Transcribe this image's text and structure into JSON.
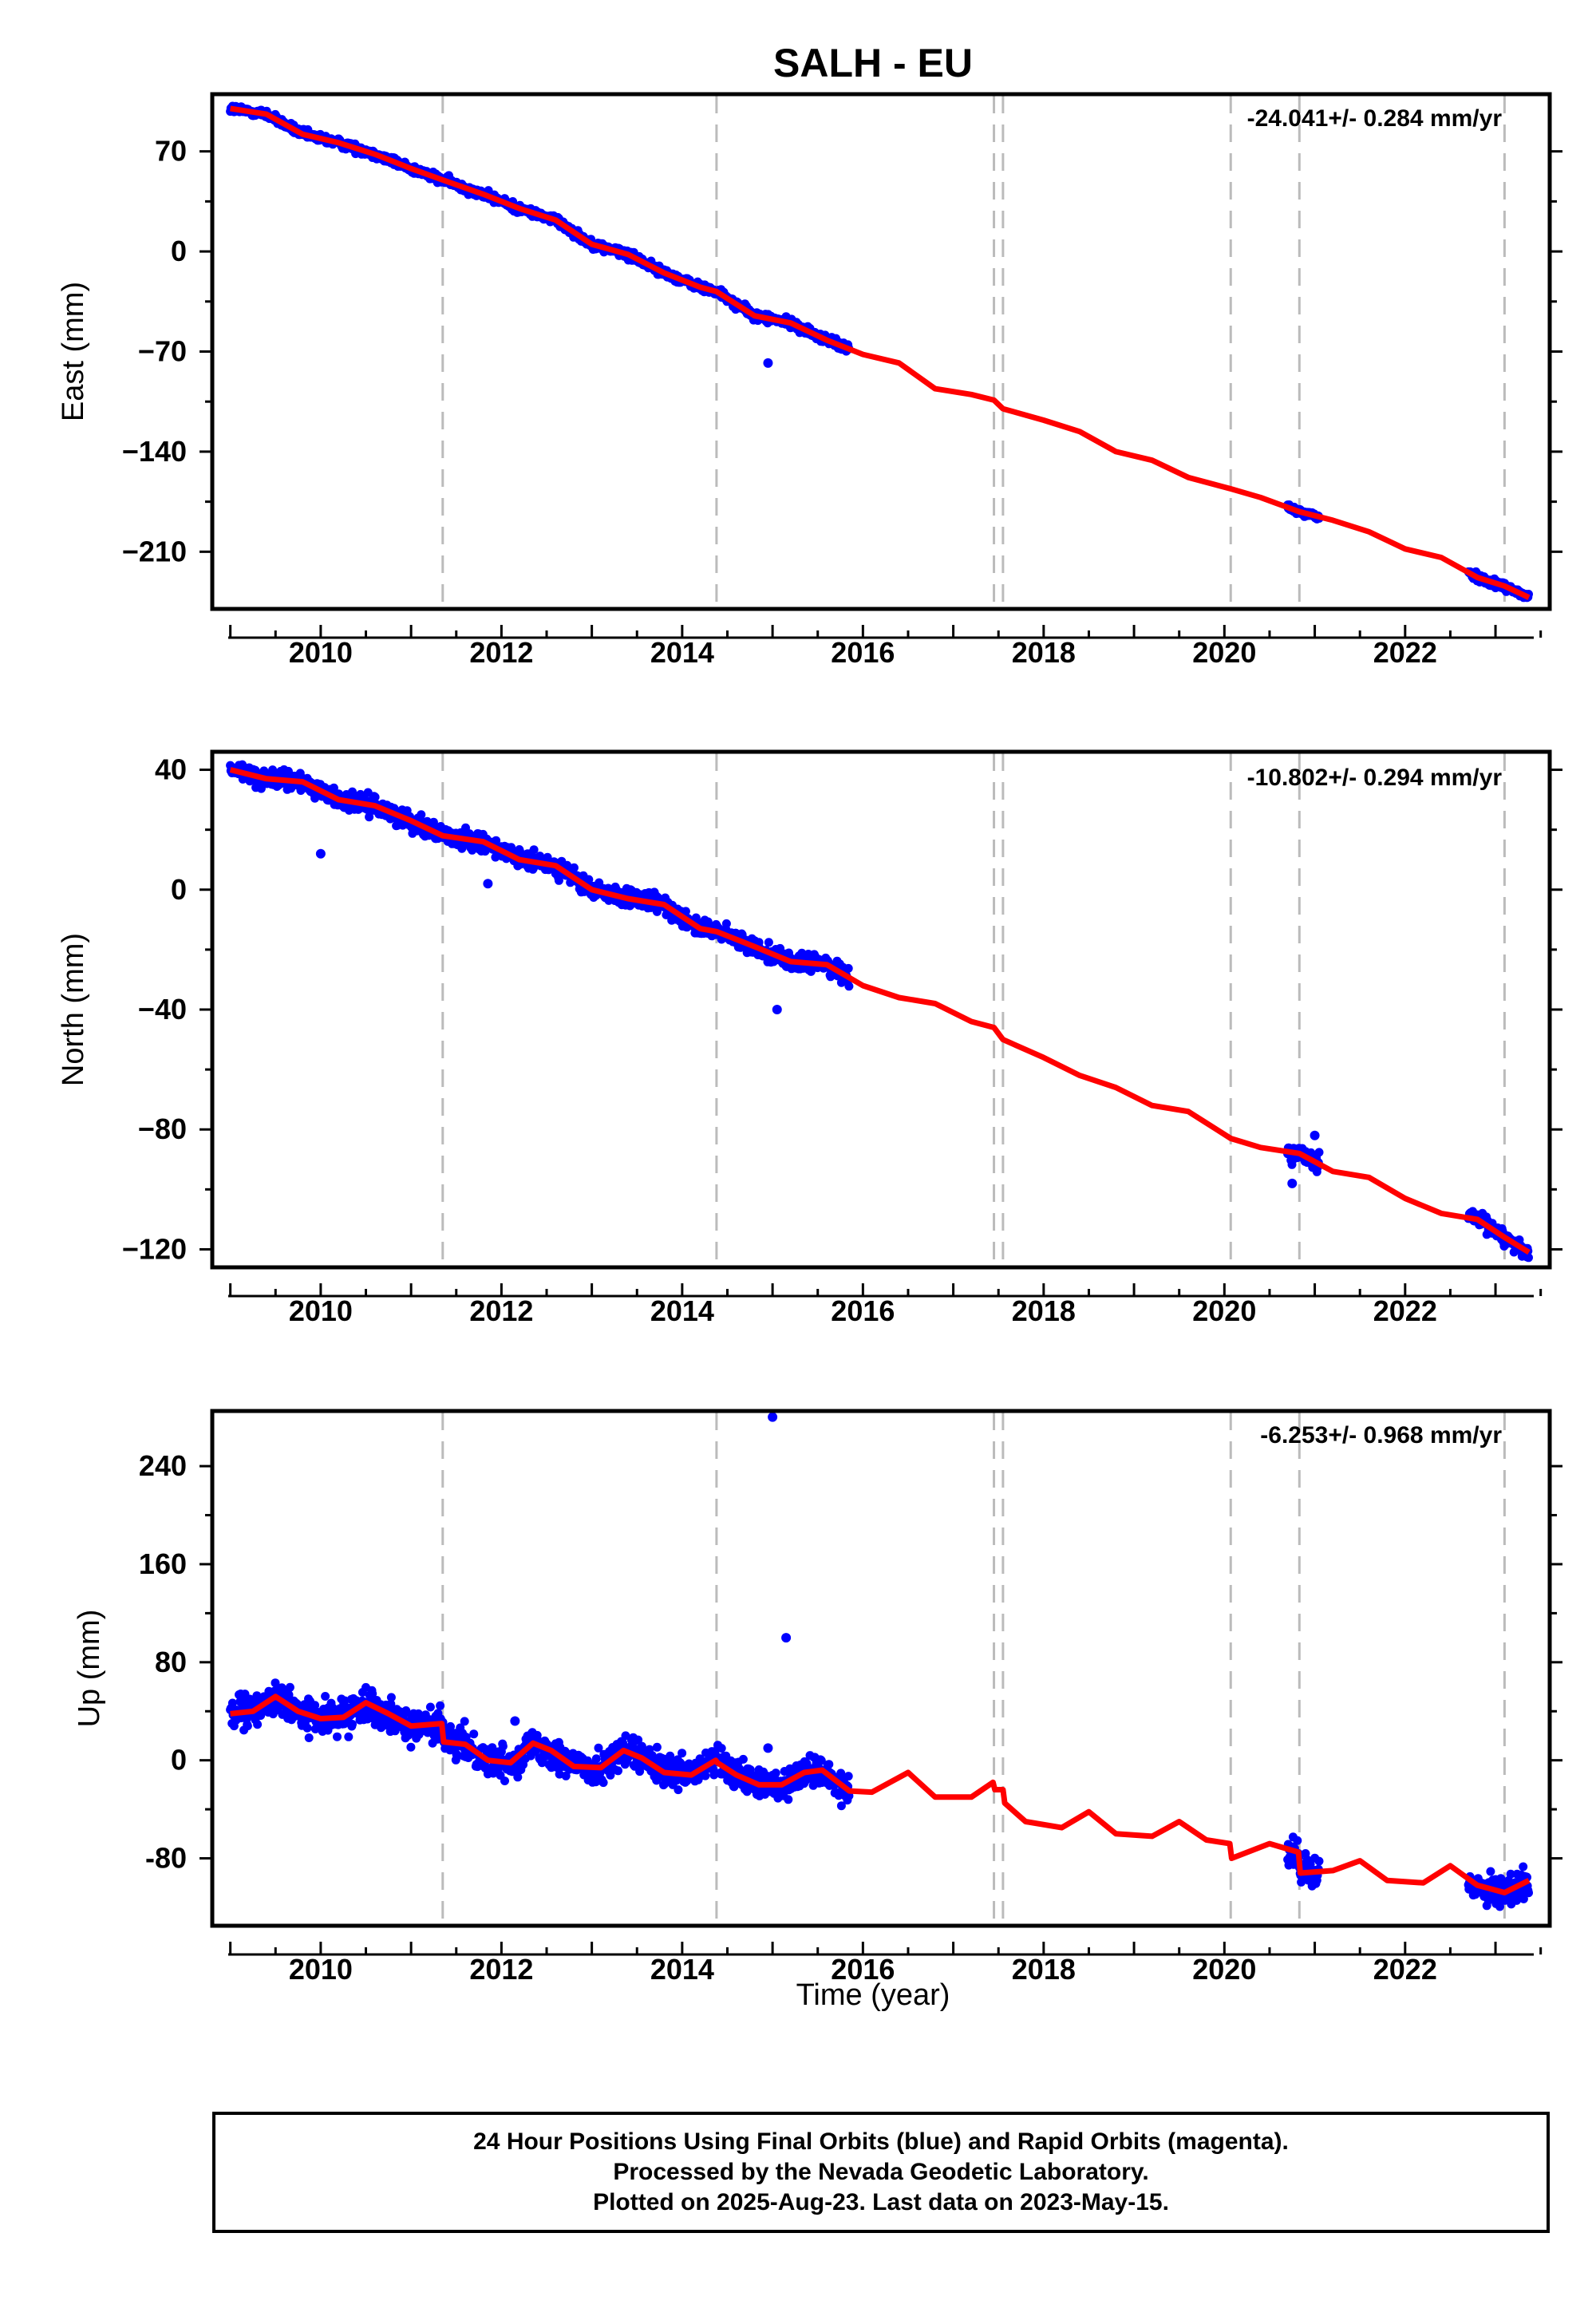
{
  "figure_title": "SALH - EU",
  "xlabel": "Time (year)",
  "notes": [
    "24 Hour Positions Using Final Orbits (blue) and Rapid Orbits (magenta).",
    "Processed by the Nevada Geodetic Laboratory.",
    "Plotted on 2025-Aug-23. Last data on 2023-May-15."
  ],
  "colors": {
    "data": "#0000ff",
    "model": "#ff0000",
    "steps": "#bbbbbb",
    "frame": "#000000"
  },
  "chart_data": [
    {
      "type": "scatter",
      "name": "east",
      "title": "SALH - EU",
      "xlabel": "",
      "ylabel": "East (mm)",
      "rate_label": "-24.041+/- 0.284 mm/yr",
      "xlim": [
        2008.8,
        2023.6
      ],
      "ylim": [
        -250,
        110
      ],
      "xticks": [
        2010,
        2012,
        2014,
        2016,
        2018,
        2020,
        2022
      ],
      "xtick_labels": [
        "2010",
        "2012",
        "2014",
        "2016",
        "2018",
        "2020",
        "2022"
      ],
      "yticks": [
        70,
        0,
        -70,
        -140,
        -210
      ],
      "ytick_labels": [
        "70",
        "0",
        "−70",
        "−140",
        "−210"
      ],
      "step_epochs": [
        2011.35,
        2014.38,
        2017.45,
        2017.55,
        2020.07,
        2020.83,
        2023.1
      ],
      "data_segments": [
        [
          2009.0,
          2015.85
        ],
        [
          2020.7,
          2021.05
        ],
        [
          2022.7,
          2023.37
        ]
      ],
      "model_x": [
        2009.0,
        2009.4,
        2009.8,
        2010.2,
        2010.6,
        2011.0,
        2011.35,
        2011.8,
        2012.2,
        2012.6,
        2013.0,
        2013.4,
        2013.8,
        2014.2,
        2014.38,
        2014.8,
        2015.2,
        2015.6,
        2016.0,
        2016.4,
        2016.8,
        2017.2,
        2017.45,
        2017.55,
        2018.0,
        2018.4,
        2018.8,
        2019.2,
        2019.6,
        2020.07,
        2020.4,
        2020.83,
        2021.2,
        2021.6,
        2022.0,
        2022.4,
        2022.8,
        2023.1,
        2023.37
      ],
      "model_y": [
        100,
        96,
        82,
        76,
        68,
        58,
        50,
        40,
        30,
        22,
        5,
        -2,
        -15,
        -25,
        -28,
        -45,
        -50,
        -62,
        -72,
        -78,
        -96,
        -100,
        -104,
        -110,
        -118,
        -126,
        -140,
        -146,
        -158,
        -166,
        -172,
        -182,
        -188,
        -196,
        -208,
        -214,
        -228,
        -234,
        -242
      ],
      "outliers": [
        {
          "x": 2014.95,
          "y": -78
        }
      ]
    },
    {
      "type": "scatter",
      "name": "north",
      "xlabel": "",
      "ylabel": "North (mm)",
      "rate_label": "-10.802+/- 0.294 mm/yr",
      "xlim": [
        2008.8,
        2023.6
      ],
      "ylim": [
        -126,
        46
      ],
      "xticks": [
        2010,
        2012,
        2014,
        2016,
        2018,
        2020,
        2022
      ],
      "xtick_labels": [
        "2010",
        "2012",
        "2014",
        "2016",
        "2018",
        "2020",
        "2022"
      ],
      "yticks": [
        40,
        0,
        -40,
        -80,
        -120
      ],
      "ytick_labels": [
        "40",
        "0",
        "−40",
        "−80",
        "−120"
      ],
      "step_epochs": [
        2011.35,
        2014.38,
        2017.45,
        2017.55,
        2020.07,
        2020.83,
        2023.1
      ],
      "data_segments": [
        [
          2009.0,
          2015.85
        ],
        [
          2020.7,
          2021.05
        ],
        [
          2022.7,
          2023.37
        ]
      ],
      "model_x": [
        2009.0,
        2009.4,
        2009.8,
        2010.2,
        2010.6,
        2011.0,
        2011.35,
        2011.8,
        2012.2,
        2012.6,
        2013.0,
        2013.4,
        2013.8,
        2014.2,
        2014.38,
        2014.8,
        2015.2,
        2015.6,
        2016.0,
        2016.4,
        2016.8,
        2017.2,
        2017.45,
        2017.55,
        2018.0,
        2018.4,
        2018.8,
        2019.2,
        2019.6,
        2020.07,
        2020.4,
        2020.83,
        2021.2,
        2021.6,
        2022.0,
        2022.4,
        2022.8,
        2023.1,
        2023.37
      ],
      "model_y": [
        40,
        37,
        36,
        30,
        28,
        23,
        18,
        16,
        10,
        8,
        0,
        -3,
        -5,
        -13,
        -14,
        -19,
        -24,
        -25,
        -32,
        -36,
        -38,
        -44,
        -46,
        -50,
        -56,
        -62,
        -66,
        -72,
        -74,
        -83,
        -86,
        -88,
        -94,
        -96,
        -103,
        -108,
        -110,
        -116,
        -121
      ],
      "outliers": [
        {
          "x": 2010.0,
          "y": 12
        },
        {
          "x": 2011.85,
          "y": 2
        },
        {
          "x": 2015.05,
          "y": -40
        },
        {
          "x": 2020.75,
          "y": -98
        },
        {
          "x": 2021.0,
          "y": -82
        }
      ]
    },
    {
      "type": "scatter",
      "name": "up",
      "xlabel": "Time (year)",
      "ylabel": "Up (mm)",
      "rate_label": "-6.253+/- 0.968 mm/yr",
      "xlim": [
        2008.8,
        2023.6
      ],
      "ylim": [
        -135,
        285
      ],
      "xticks": [
        2010,
        2012,
        2014,
        2016,
        2018,
        2020,
        2022
      ],
      "xtick_labels": [
        "2010",
        "2012",
        "2014",
        "2016",
        "2018",
        "2020",
        "2022"
      ],
      "yticks": [
        240,
        160,
        80,
        0,
        -80
      ],
      "ytick_labels": [
        "240",
        "160",
        "80",
        "0",
        "-80"
      ],
      "step_epochs": [
        2011.35,
        2014.38,
        2017.45,
        2017.55,
        2020.07,
        2020.83,
        2023.1
      ],
      "data_segments": [
        [
          2009.0,
          2015.85
        ],
        [
          2020.7,
          2021.05
        ],
        [
          2022.7,
          2023.37
        ]
      ],
      "model_x": [
        2009.0,
        2009.25,
        2009.5,
        2009.75,
        2010.0,
        2010.25,
        2010.5,
        2010.75,
        2011.0,
        2011.34,
        2011.36,
        2011.6,
        2011.85,
        2012.1,
        2012.35,
        2012.55,
        2012.8,
        2013.1,
        2013.35,
        2013.55,
        2013.8,
        2014.1,
        2014.37,
        2014.39,
        2014.6,
        2014.85,
        2015.1,
        2015.35,
        2015.55,
        2015.85,
        2016.1,
        2016.5,
        2016.8,
        2017.2,
        2017.44,
        2017.46,
        2017.55,
        2017.57,
        2017.8,
        2018.2,
        2018.5,
        2018.8,
        2019.2,
        2019.5,
        2019.8,
        2020.06,
        2020.08,
        2020.5,
        2020.82,
        2020.84,
        2021.2,
        2021.5,
        2021.8,
        2022.2,
        2022.5,
        2022.8,
        2023.1,
        2023.37
      ],
      "model_y": [
        38,
        40,
        52,
        40,
        34,
        35,
        47,
        38,
        28,
        30,
        15,
        13,
        0,
        -2,
        14,
        8,
        -5,
        -6,
        8,
        2,
        -10,
        -12,
        0,
        -2,
        -12,
        -20,
        -20,
        -10,
        -8,
        -25,
        -26,
        -10,
        -30,
        -30,
        -18,
        -24,
        -24,
        -35,
        -50,
        -55,
        -42,
        -60,
        -62,
        -50,
        -65,
        -68,
        -80,
        -68,
        -75,
        -92,
        -90,
        -82,
        -98,
        -100,
        -86,
        -102,
        -108,
        -98
      ],
      "outliers": [
        {
          "x": 2015.0,
          "y": 280
        },
        {
          "x": 2015.15,
          "y": 100
        },
        {
          "x": 2014.95,
          "y": 10
        },
        {
          "x": 2012.15,
          "y": 32
        }
      ]
    }
  ]
}
